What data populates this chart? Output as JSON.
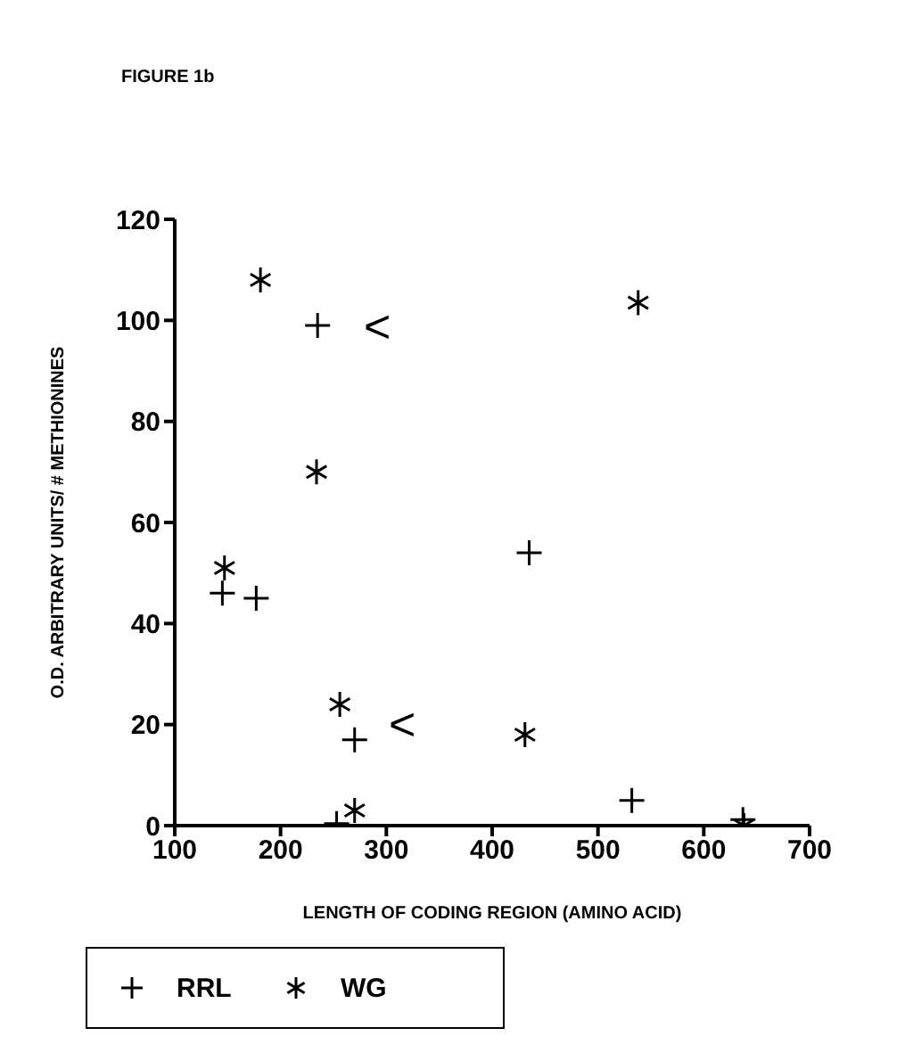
{
  "chart_data": {
    "type": "scatter",
    "title": "FIGURE 1b",
    "xlabel": "LENGTH OF CODING REGION      (AMINO ACID)",
    "ylabel": "O.D. ARBITRARY UNITS/ # METHIONINES",
    "xlim": [
      100,
      700
    ],
    "xticks": [
      100,
      200,
      300,
      400,
      500,
      600,
      700
    ],
    "ylim": [
      0,
      120
    ],
    "yticks": [
      0,
      20,
      40,
      60,
      80,
      100,
      120
    ],
    "grid": false,
    "legend": "bottom",
    "series": [
      {
        "name": "RRL",
        "color": "#000000",
        "marker": "cross",
        "x": [
          235,
          145,
          177,
          270,
          253,
          435,
          532,
          637
        ],
        "values": [
          99,
          46,
          45,
          17,
          0.4,
          54,
          5,
          1.2
        ]
      },
      {
        "name": "WG",
        "color": "#000000",
        "x": [
          181,
          234,
          147,
          256,
          270,
          431,
          538,
          638
        ],
        "values": [
          108,
          70,
          51,
          24,
          3,
          18,
          103.5,
          0
        ]
      }
    ],
    "annotations": [
      "<",
      "<"
    ]
  }
}
